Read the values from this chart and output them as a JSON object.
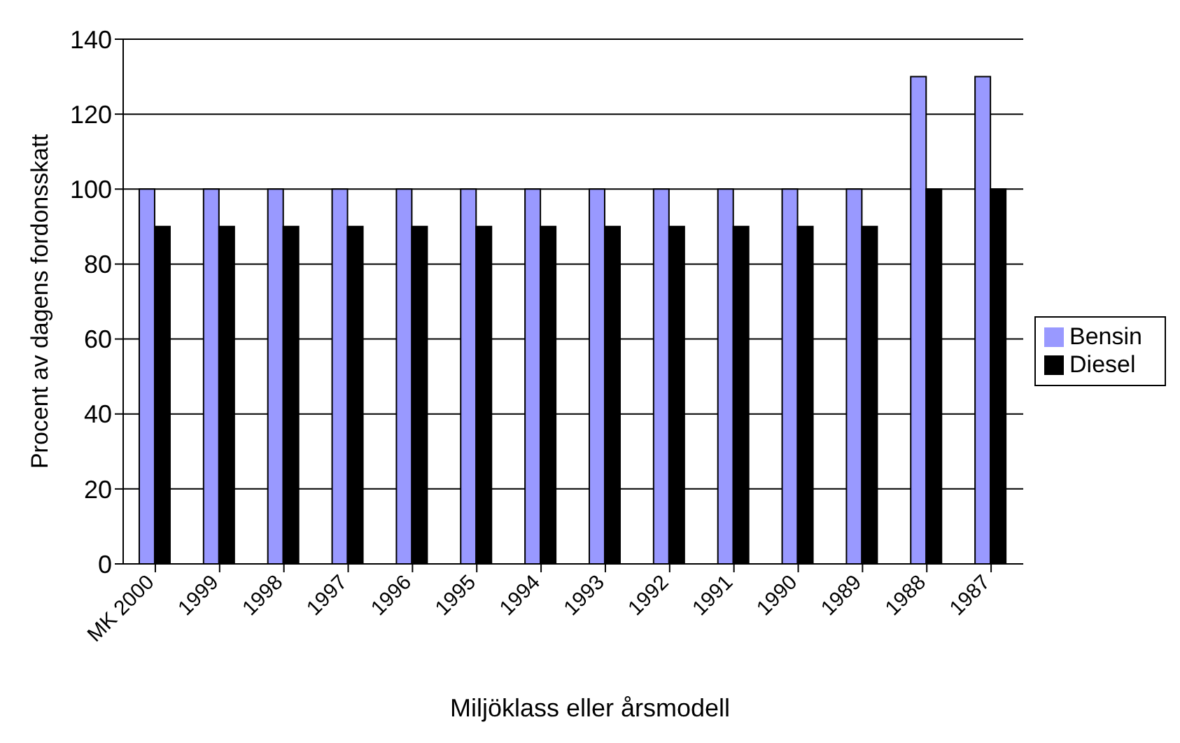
{
  "chart_data": {
    "type": "bar",
    "xlabel": "Miljöklass eller årsmodell",
    "ylabel": "Procent av dagens fordonsskatt",
    "categories": [
      "MK 2000",
      "1999",
      "1998",
      "1997",
      "1996",
      "1995",
      "1994",
      "1993",
      "1992",
      "1991",
      "1990",
      "1989",
      "1988",
      "1987"
    ],
    "series": [
      {
        "name": "Bensin",
        "color": "#9999ff",
        "values": [
          100,
          100,
          100,
          100,
          100,
          100,
          100,
          100,
          100,
          100,
          100,
          100,
          130,
          130
        ]
      },
      {
        "name": "Diesel",
        "color": "#000000",
        "values": [
          90,
          90,
          90,
          90,
          90,
          90,
          90,
          90,
          90,
          90,
          90,
          90,
          100,
          100
        ]
      }
    ],
    "ylim": [
      0,
      140
    ],
    "yticks": [
      0,
      20,
      40,
      60,
      80,
      100,
      120,
      140
    ],
    "grid": "y",
    "legend": "right"
  }
}
